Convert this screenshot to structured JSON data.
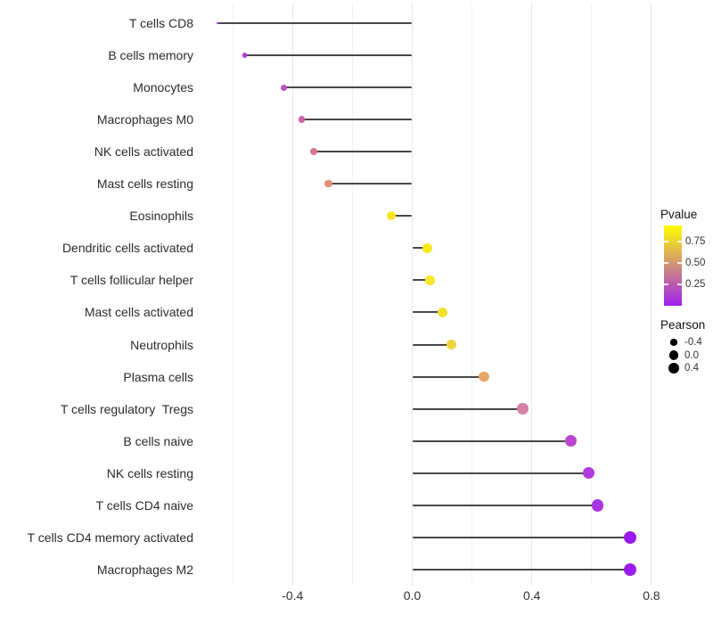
{
  "styles": {
    "background": "#FFFFFF",
    "stem_color": "#474747",
    "grid_major_color": "#E7E7E7",
    "grid_minor_color": "#F2F2F2",
    "axis_text_color": "#333333",
    "legend_dot_color": "#000000"
  },
  "chart_data": {
    "type": "lollipop",
    "orientation": "horizontal",
    "title": "",
    "xlabel": "",
    "ylabel": "",
    "baseline": 0.0,
    "xlim": [
      -0.68,
      0.84
    ],
    "x_ticks": {
      "values": [
        -0.4,
        0.0,
        0.4,
        0.8
      ],
      "labels": [
        "-0.4",
        "0.0",
        "0.4",
        "0.8"
      ]
    },
    "x_gridlines": {
      "major": [
        -0.4,
        0.0,
        0.4,
        0.8
      ],
      "minor": [
        -0.6,
        -0.2,
        0.2,
        0.6
      ]
    },
    "size_domain": [
      -0.65,
      0.73
    ],
    "points": [
      {
        "label": "T cells CD8",
        "pearson": -0.65,
        "pvalue": 0.05,
        "color": "#A42BE0"
      },
      {
        "label": "B cells memory",
        "pearson": -0.56,
        "pvalue": 0.08,
        "color": "#AC3BD9"
      },
      {
        "label": "Monocytes",
        "pearson": -0.43,
        "pvalue": 0.17,
        "color": "#C04FC4"
      },
      {
        "label": "Macrophages M0",
        "pearson": -0.37,
        "pvalue": 0.28,
        "color": "#CC62A8"
      },
      {
        "label": "NK cells activated",
        "pearson": -0.33,
        "pvalue": 0.38,
        "color": "#D8758E"
      },
      {
        "label": "Mast cells resting",
        "pearson": -0.28,
        "pvalue": 0.52,
        "color": "#E08F79"
      },
      {
        "label": "Eosinophils",
        "pearson": -0.07,
        "pvalue": 0.9,
        "color": "#F3E723"
      },
      {
        "label": "Dendritic cells activated",
        "pearson": 0.05,
        "pvalue": 0.92,
        "color": "#F5EA1D"
      },
      {
        "label": "T cells follicular helper",
        "pearson": 0.06,
        "pvalue": 0.91,
        "color": "#F4E81F"
      },
      {
        "label": "Mast cells activated",
        "pearson": 0.1,
        "pvalue": 0.86,
        "color": "#F1E02D"
      },
      {
        "label": "Neutrophils",
        "pearson": 0.13,
        "pvalue": 0.82,
        "color": "#EED63D"
      },
      {
        "label": "Plasma cells",
        "pearson": 0.24,
        "pvalue": 0.6,
        "color": "#E7A669"
      },
      {
        "label": "T cells regulatory  Tregs",
        "pearson": 0.37,
        "pvalue": 0.45,
        "color": "#D77FA5"
      },
      {
        "label": "B cells naive",
        "pearson": 0.53,
        "pvalue": 0.18,
        "color": "#BB46CF"
      },
      {
        "label": "NK cells resting",
        "pearson": 0.59,
        "pvalue": 0.1,
        "color": "#AE3BDC"
      },
      {
        "label": "T cells CD4 naive",
        "pearson": 0.62,
        "pvalue": 0.08,
        "color": "#A935E0"
      },
      {
        "label": "T cells CD4 memory activated",
        "pearson": 0.73,
        "pvalue": 0.02,
        "color": "#9B1AEE"
      },
      {
        "label": "Macrophages M2",
        "pearson": 0.73,
        "pvalue": 0.02,
        "color": "#9B1AEE"
      }
    ],
    "legend_pvalue": {
      "title": "Pvalue",
      "min": 0,
      "max": 0.94,
      "gradient_high_color": "#FFFF00",
      "gradient_low_color": "#A020F0",
      "ticks": [
        {
          "value": 0.75,
          "label": "0.75"
        },
        {
          "value": 0.5,
          "label": "0.50"
        },
        {
          "value": 0.25,
          "label": "0.25"
        }
      ]
    },
    "legend_pearson": {
      "title": "Pearson",
      "items": [
        {
          "value": -0.4,
          "label": "-0.4"
        },
        {
          "value": 0.0,
          "label": "0.0"
        },
        {
          "value": 0.4,
          "label": "0.4"
        }
      ]
    }
  }
}
